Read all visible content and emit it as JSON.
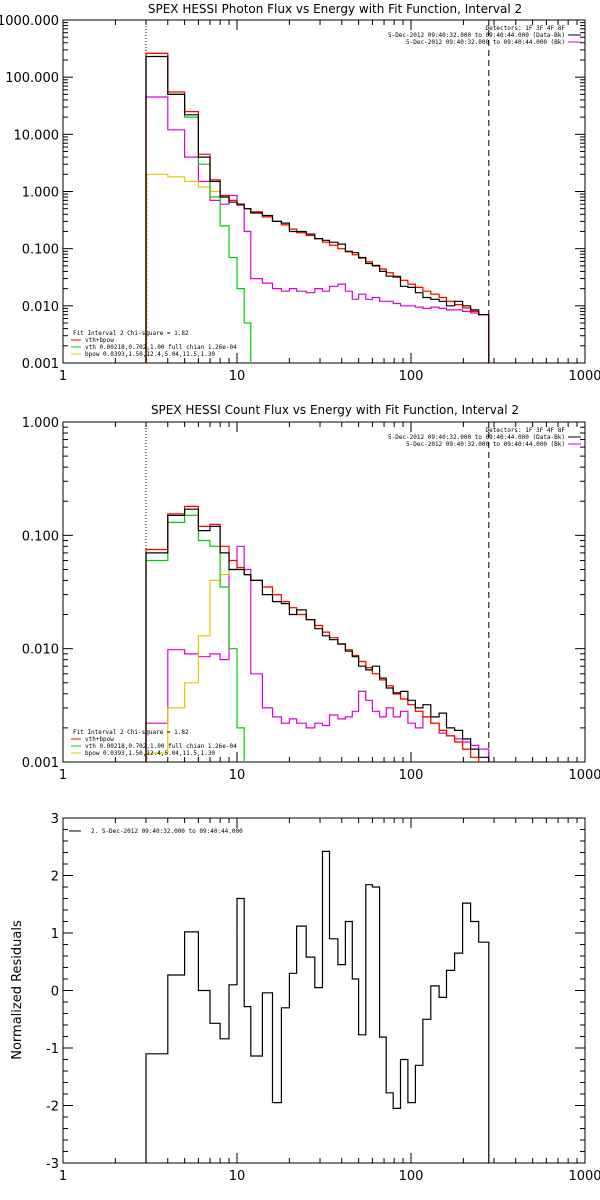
{
  "colors": {
    "background": "#ffffff",
    "axes": "#000000",
    "data": "#000000",
    "model_total": "#ff0000",
    "vth": "#00cc00",
    "bpow": "#e6c800",
    "background_spectrum": "#dd00dd",
    "fit_range_start": "#ff9900"
  },
  "chart_data": [
    {
      "type": "line",
      "title": "SPEX HESSI Photon Flux vs Energy with Fit Function, Interval 2",
      "xlabel": "",
      "ylabel": "",
      "xscale": "log",
      "yscale": "log",
      "xlim": [
        1,
        1000
      ],
      "ylim": [
        0.001,
        1000
      ],
      "x_ticks": [
        1,
        10,
        100,
        1000
      ],
      "x_tick_labels": [
        "1",
        "10",
        "100",
        "1000"
      ],
      "y_ticks": [
        0.001,
        0.01,
        0.1,
        1,
        10,
        100,
        1000
      ],
      "y_tick_labels": [
        "0.001",
        "0.010",
        "0.100",
        "1.000",
        "10.000",
        "100.000",
        "1000.000"
      ],
      "vlines": [
        {
          "x": 3,
          "style": "dotted"
        },
        {
          "x": 280,
          "style": "dashed"
        }
      ],
      "header_lines": [
        "Detectors: 1F 3F 4F 8F",
        "5-Dec-2012 09:40:32.000 to 09:40:44.000 (Data-Bk)",
        "5-Dec-2012 09:40:32.000 to 09:40:44.000 (Bk)"
      ],
      "header_line_colors": [
        "#000000",
        "#000000",
        "#dd00dd"
      ],
      "legend_lines": [
        "Fit Interval 2   Chi-square = 1.82",
        "vth+bpow",
        "vth 0.00218,0.702,1.00  full chian 1.26e-04",
        "bpow 0.0393,1.50,12.4,5.04,11.5,1.30"
      ],
      "legend_colors": [
        "",
        "#ff0000",
        "#00cc00",
        "#e6c800"
      ],
      "legend_position": "bottom-left",
      "edges": [
        3,
        4,
        5,
        6,
        7,
        8,
        9,
        10,
        11,
        12,
        14,
        16,
        18,
        20,
        22,
        25,
        28,
        31,
        34,
        38,
        42,
        46,
        50,
        55,
        60,
        66,
        72,
        79,
        87,
        96,
        106,
        117,
        130,
        145,
        160,
        178,
        198,
        220,
        245,
        280
      ],
      "series": [
        {
          "name": "Data-Bk",
          "color": "#000000",
          "values": [
            230,
            50,
            22,
            4,
            1.5,
            0.8,
            0.65,
            0.6,
            0.5,
            0.42,
            0.38,
            0.3,
            0.28,
            0.2,
            0.2,
            0.18,
            0.15,
            0.14,
            0.13,
            0.12,
            0.09,
            0.085,
            0.07,
            0.055,
            0.05,
            0.04,
            0.033,
            0.032,
            0.022,
            0.021,
            0.017,
            0.014,
            0.013,
            0.012,
            0.01,
            0.012,
            0.01,
            0.0085,
            0.007
          ]
        },
        {
          "name": "vth+bpow",
          "color": "#ff0000",
          "values": [
            260,
            55,
            25,
            4.5,
            1.6,
            0.85,
            0.7,
            0.58,
            0.5,
            0.44,
            0.36,
            0.3,
            0.26,
            0.22,
            0.19,
            0.17,
            0.15,
            0.13,
            0.115,
            0.1,
            0.088,
            0.078,
            0.068,
            0.059,
            0.051,
            0.044,
            0.038,
            0.033,
            0.028,
            0.024,
            0.021,
            0.018,
            0.016,
            0.014,
            0.012,
            0.0105,
            0.0092,
            0.008,
            0.007
          ]
        },
        {
          "name": "vth",
          "color": "#00cc00",
          "values": [
            260,
            50,
            20,
            3,
            0.8,
            0.25,
            0.07,
            0.02,
            0.005,
            0.001
          ]
        },
        {
          "name": "bpow",
          "color": "#e6c800",
          "values": [
            2.0,
            1.8,
            1.5,
            1.2,
            1.0,
            0.8,
            0.7,
            0.58,
            0.5,
            0.44,
            0.36,
            0.3,
            0.26,
            0.22,
            0.19,
            0.17,
            0.15,
            0.13,
            0.115,
            0.1,
            0.088,
            0.078,
            0.068,
            0.059,
            0.051,
            0.044,
            0.038,
            0.033,
            0.028,
            0.024,
            0.021,
            0.018,
            0.016,
            0.014,
            0.012,
            0.0105,
            0.0092,
            0.008,
            0.007
          ]
        },
        {
          "name": "Bk",
          "color": "#dd00dd",
          "values": [
            45,
            12,
            4,
            1.5,
            0.7,
            0.6,
            0.85,
            0.6,
            0.2,
            0.03,
            0.025,
            0.02,
            0.018,
            0.02,
            0.018,
            0.017,
            0.02,
            0.018,
            0.022,
            0.024,
            0.018,
            0.013,
            0.016,
            0.013,
            0.014,
            0.012,
            0.012,
            0.011,
            0.01,
            0.01,
            0.0095,
            0.009,
            0.0095,
            0.009,
            0.0085,
            0.0085,
            0.008,
            0.0075,
            0.007
          ]
        }
      ]
    },
    {
      "type": "line",
      "title": "SPEX HESSI Count Flux vs Energy with Fit Function, Interval 2",
      "xlabel": "",
      "ylabel": "",
      "xscale": "log",
      "yscale": "log",
      "xlim": [
        1,
        1000
      ],
      "ylim": [
        0.001,
        1
      ],
      "x_ticks": [
        1,
        10,
        100,
        1000
      ],
      "x_tick_labels": [
        "1",
        "10",
        "100",
        "1000"
      ],
      "y_ticks": [
        0.001,
        0.01,
        0.1,
        1
      ],
      "y_tick_labels": [
        "0.001",
        "0.010",
        "0.100",
        "1.000"
      ],
      "vlines": [
        {
          "x": 3,
          "style": "dotted"
        },
        {
          "x": 280,
          "style": "dashed"
        }
      ],
      "header_lines": [
        "Detectors: 1F 3F 4F 8F",
        "5-Dec-2012 09:40:32.000 to 09:40:44.000 (Data-Bk)",
        "5-Dec-2012 09:40:32.000 to 09:40:44.000 (Bk)"
      ],
      "header_line_colors": [
        "#000000",
        "#000000",
        "#dd00dd"
      ],
      "legend_lines": [
        "Fit Interval 2   Chi-square = 1.82",
        "vth+bpow",
        "vth 0.00218,0.702,1.00  full chian 1.26e-04",
        "bpow 0.0393,1.50,12.4,5.04,11.5,1.30"
      ],
      "legend_colors": [
        "",
        "#ff0000",
        "#00cc00",
        "#e6c800"
      ],
      "legend_position": "bottom-left",
      "edges": [
        3,
        4,
        5,
        6,
        7,
        8,
        9,
        10,
        11,
        12,
        14,
        16,
        18,
        20,
        22,
        25,
        28,
        31,
        34,
        38,
        42,
        46,
        50,
        55,
        60,
        66,
        72,
        79,
        87,
        96,
        106,
        117,
        130,
        145,
        160,
        178,
        198,
        220,
        245,
        280
      ],
      "series": [
        {
          "name": "Data-Bk",
          "color": "#000000",
          "values": [
            0.07,
            0.15,
            0.17,
            0.11,
            0.12,
            0.07,
            0.05,
            0.05,
            0.045,
            0.04,
            0.03,
            0.026,
            0.025,
            0.02,
            0.022,
            0.018,
            0.015,
            0.013,
            0.012,
            0.011,
            0.0095,
            0.0085,
            0.007,
            0.0065,
            0.007,
            0.0055,
            0.0045,
            0.004,
            0.0042,
            0.0035,
            0.003,
            0.0032,
            0.0025,
            0.0027,
            0.002,
            0.0019,
            0.0016,
            0.0013,
            0.0011
          ]
        },
        {
          "name": "vth+bpow",
          "color": "#ff0000",
          "values": [
            0.075,
            0.155,
            0.18,
            0.12,
            0.125,
            0.08,
            0.06,
            0.052,
            0.045,
            0.04,
            0.035,
            0.03,
            0.026,
            0.023,
            0.02,
            0.018,
            0.016,
            0.014,
            0.0125,
            0.011,
            0.0098,
            0.0087,
            0.0077,
            0.0068,
            0.006,
            0.0053,
            0.0047,
            0.0041,
            0.0036,
            0.0032,
            0.0028,
            0.0025,
            0.0022,
            0.0019,
            0.0017,
            0.0015,
            0.0013,
            0.0011,
            0.001
          ]
        },
        {
          "name": "vth",
          "color": "#00cc00",
          "values": [
            0.06,
            0.13,
            0.15,
            0.09,
            0.08,
            0.035,
            0.01,
            0.002,
            0.0005
          ]
        },
        {
          "name": "bpow",
          "color": "#e6c800",
          "values": [
            0.0012,
            0.003,
            0.005,
            0.013,
            0.04,
            0.045,
            0.05,
            0.05,
            0.045,
            0.04,
            0.035,
            0.03,
            0.026,
            0.023,
            0.02,
            0.018,
            0.016,
            0.014,
            0.0125,
            0.011,
            0.0098,
            0.0087,
            0.0077,
            0.0068,
            0.006,
            0.0053,
            0.0047,
            0.0041,
            0.0036,
            0.0032,
            0.0028,
            0.0025,
            0.0022,
            0.0019,
            0.0017,
            0.0015,
            0.0013,
            0.0011,
            0.001
          ]
        },
        {
          "name": "Bk",
          "color": "#dd00dd",
          "values": [
            0.0022,
            0.0098,
            0.009,
            0.0085,
            0.009,
            0.008,
            0.05,
            0.08,
            0.05,
            0.006,
            0.003,
            0.0025,
            0.0022,
            0.0024,
            0.0022,
            0.002,
            0.0022,
            0.0021,
            0.0026,
            0.0024,
            0.0025,
            0.0028,
            0.0042,
            0.0035,
            0.0028,
            0.0025,
            0.003,
            0.0025,
            0.0028,
            0.0022,
            0.002,
            0.0025,
            0.0022,
            0.0018,
            0.0017,
            0.0016,
            0.0015,
            0.0014,
            0.0013
          ]
        }
      ]
    },
    {
      "type": "line",
      "title": "",
      "xlabel": "",
      "ylabel": "Normalized Residuals",
      "xscale": "log",
      "yscale": "linear",
      "xlim": [
        1,
        1000
      ],
      "ylim": [
        -3,
        3
      ],
      "x_ticks": [
        1,
        10,
        100,
        1000
      ],
      "x_tick_labels": [
        "1",
        "10",
        "100",
        "1000"
      ],
      "y_ticks": [
        -3,
        -2,
        -1,
        0,
        1,
        2,
        3
      ],
      "y_tick_labels": [
        "-3",
        "-2",
        "-1",
        "0",
        "1",
        "2",
        "3"
      ],
      "legend_lines": [
        "2. 5-Dec-2012 09:40:32.000 to 09:40:44.000"
      ],
      "legend_colors": [
        "#000000"
      ],
      "legend_position": "top-left",
      "edges": [
        3,
        4,
        5,
        6,
        7,
        8,
        9,
        10,
        11,
        12,
        14,
        16,
        18,
        20,
        22,
        25,
        28,
        31,
        34,
        38,
        42,
        46,
        50,
        55,
        60,
        66,
        72,
        79,
        87,
        96,
        106,
        117,
        130,
        145,
        160,
        178,
        198,
        220,
        245,
        280
      ],
      "series": [
        {
          "name": "2. 5-Dec-2012 09:40:32.000 to 09:40:44.000",
          "color": "#000000",
          "values": [
            -1.1,
            0.27,
            1.02,
            0.0,
            -0.57,
            -0.84,
            0.1,
            1.6,
            -0.28,
            -1.14,
            -0.04,
            -1.95,
            -0.3,
            0.3,
            1.12,
            0.58,
            0.05,
            2.42,
            0.9,
            0.45,
            1.2,
            0.2,
            -0.77,
            1.84,
            1.8,
            -0.81,
            -1.78,
            -2.05,
            -1.2,
            -1.95,
            -1.3,
            -0.5,
            0.08,
            -0.12,
            0.35,
            0.65,
            1.52,
            1.2,
            0.84
          ]
        }
      ]
    }
  ]
}
